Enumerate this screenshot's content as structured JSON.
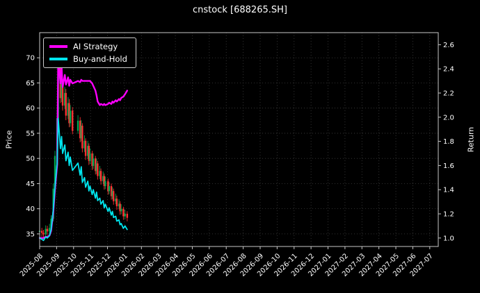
{
  "colors": {
    "background": "#000000",
    "text": "#ffffff",
    "grid": "#3f3f3f",
    "spine": "#c8c8c8",
    "up_candle": "#00a650",
    "down_candle": "#fe3032"
  },
  "chart_data": {
    "type": "line",
    "candlestick_overlay": true,
    "title": "cnstock [688265.SH]",
    "xlabel": "",
    "ylabel_left": "Price",
    "ylabel_right": "Return",
    "grid": true,
    "legend_position": "upper-left",
    "x_tick_labels": [
      "2025-08",
      "2025-09",
      "2025-10",
      "2025-11",
      "2025-12",
      "2026-01",
      "2026-02",
      "2026-03",
      "2026-04",
      "2026-05",
      "2026-06",
      "2026-07",
      "2026-08",
      "2026-09",
      "2026-10",
      "2026-11",
      "2026-12",
      "2027-01",
      "2027-02",
      "2027-03",
      "2027-04",
      "2027-05",
      "2027-06",
      "2027-07"
    ],
    "y_left_ticks": [
      35,
      40,
      45,
      50,
      55,
      60,
      65,
      70
    ],
    "y_right_ticks": [
      1.0,
      1.2,
      1.4,
      1.6,
      1.8,
      2.0,
      2.2,
      2.4,
      2.6
    ],
    "y_left_range": [
      32.5,
      75
    ],
    "y_right_range": [
      0.93,
      2.7
    ],
    "dates": [
      "2025-08-01",
      "2025-08-05",
      "2025-08-08",
      "2025-08-12",
      "2025-08-15",
      "2025-08-19",
      "2025-08-22",
      "2025-08-26",
      "2025-08-29",
      "2025-09-02",
      "2025-09-04",
      "2025-09-08",
      "2025-09-10",
      "2025-09-12",
      "2025-09-16",
      "2025-09-18",
      "2025-09-22",
      "2025-09-24",
      "2025-09-26",
      "2025-09-30",
      "2025-10-09",
      "2025-10-13",
      "2025-10-15",
      "2025-10-17",
      "2025-10-21",
      "2025-10-23",
      "2025-10-27",
      "2025-10-29",
      "2025-10-31",
      "2025-11-04",
      "2025-11-06",
      "2025-11-10",
      "2025-11-12",
      "2025-11-14",
      "2025-11-18",
      "2025-11-20",
      "2025-11-24",
      "2025-11-26",
      "2025-11-28",
      "2025-12-02",
      "2025-12-04",
      "2025-12-08",
      "2025-12-10",
      "2025-12-12",
      "2025-12-16",
      "2025-12-18",
      "2025-12-22",
      "2025-12-24",
      "2025-12-26",
      "2025-12-30",
      "2026-01-02",
      "2026-01-06"
    ],
    "candles_ohlc": [
      [
        35.4,
        36.4,
        34.6,
        35.6
      ],
      [
        35.6,
        36.2,
        34.4,
        35.2
      ],
      [
        35.2,
        35.8,
        34.1,
        34.9
      ],
      [
        34.9,
        36.7,
        34.3,
        36.0
      ],
      [
        36.0,
        36.6,
        34.8,
        35.5
      ],
      [
        35.5,
        37.0,
        34.9,
        36.2
      ],
      [
        36.2,
        38.7,
        35.7,
        38.0
      ],
      [
        38.0,
        45.0,
        37.5,
        44.0
      ],
      [
        44.0,
        51.5,
        43.5,
        50.5
      ],
      [
        50.5,
        59.5,
        50.0,
        58.0
      ],
      [
        58.0,
        72.5,
        57.5,
        70.9
      ],
      [
        70.9,
        71.5,
        61.0,
        62.0
      ],
      [
        62.0,
        66.8,
        61.2,
        65.5
      ],
      [
        65.5,
        66.0,
        59.5,
        60.5
      ],
      [
        60.5,
        64.2,
        59.8,
        63.0
      ],
      [
        63.0,
        63.8,
        57.6,
        58.5
      ],
      [
        58.5,
        62.2,
        57.8,
        61.0
      ],
      [
        61.0,
        61.8,
        56.2,
        57.0
      ],
      [
        57.0,
        60.6,
        56.3,
        59.5
      ],
      [
        59.5,
        60.2,
        54.8,
        55.5
      ],
      [
        55.5,
        58.6,
        54.9,
        57.5
      ],
      [
        57.5,
        58.2,
        53.2,
        54.0
      ],
      [
        54.0,
        57.6,
        53.4,
        56.5
      ],
      [
        56.5,
        57.0,
        51.2,
        52.0
      ],
      [
        52.0,
        54.6,
        51.3,
        53.5
      ],
      [
        53.5,
        54.0,
        49.7,
        50.5
      ],
      [
        50.5,
        53.5,
        49.9,
        52.5
      ],
      [
        52.5,
        53.0,
        48.7,
        49.5
      ],
      [
        49.5,
        52.0,
        48.9,
        51.0
      ],
      [
        51.0,
        51.5,
        47.7,
        48.5
      ],
      [
        48.5,
        51.0,
        47.9,
        50.0
      ],
      [
        50.0,
        50.5,
        46.8,
        47.5
      ],
      [
        47.5,
        50.0,
        46.9,
        49.0
      ],
      [
        49.0,
        49.5,
        45.8,
        46.5
      ],
      [
        46.5,
        48.5,
        45.9,
        47.5
      ],
      [
        47.5,
        48.0,
        44.8,
        45.5
      ],
      [
        45.5,
        47.4,
        44.9,
        46.5
      ],
      [
        46.5,
        47.0,
        43.8,
        44.5
      ],
      [
        44.5,
        46.4,
        43.9,
        45.5
      ],
      [
        45.5,
        46.0,
        42.8,
        43.5
      ],
      [
        43.5,
        45.3,
        42.9,
        44.5
      ],
      [
        44.5,
        45.0,
        41.8,
        42.5
      ],
      [
        42.5,
        44.3,
        41.9,
        43.5
      ],
      [
        43.5,
        44.0,
        40.8,
        41.5
      ],
      [
        41.5,
        43.0,
        40.9,
        42.0
      ],
      [
        42.0,
        42.6,
        39.8,
        40.5
      ],
      [
        40.5,
        41.9,
        39.9,
        41.0
      ],
      [
        41.0,
        41.5,
        38.8,
        39.5
      ],
      [
        39.5,
        40.9,
        38.9,
        40.0
      ],
      [
        40.0,
        40.4,
        37.8,
        38.5
      ],
      [
        38.5,
        39.8,
        37.9,
        39.0
      ],
      [
        39.0,
        39.5,
        37.5,
        38.2
      ]
    ],
    "series": [
      {
        "name": "AI Strategy",
        "axis": "right",
        "color": "#ff00ff",
        "values": [
          1.0,
          1.0,
          1.0,
          1.01,
          1.01,
          1.02,
          1.06,
          1.22,
          1.4,
          1.61,
          2.5,
          2.28,
          2.42,
          2.25,
          2.35,
          2.27,
          2.33,
          2.26,
          2.31,
          2.28,
          2.3,
          2.29,
          2.31,
          2.3,
          2.3,
          2.3,
          2.3,
          2.3,
          2.3,
          2.28,
          2.26,
          2.22,
          2.18,
          2.13,
          2.1,
          2.11,
          2.1,
          2.11,
          2.1,
          2.11,
          2.12,
          2.11,
          2.13,
          2.12,
          2.14,
          2.13,
          2.15,
          2.14,
          2.16,
          2.17,
          2.19,
          2.22
        ]
      },
      {
        "name": "Buy-and-Hold",
        "axis": "right",
        "color": "#00e5ee",
        "values": [
          1.0,
          0.99,
          0.98,
          1.01,
          1.0,
          1.02,
          1.07,
          1.24,
          1.42,
          1.63,
          1.99,
          1.74,
          1.84,
          1.7,
          1.77,
          1.64,
          1.71,
          1.6,
          1.67,
          1.56,
          1.62,
          1.52,
          1.59,
          1.46,
          1.5,
          1.42,
          1.47,
          1.39,
          1.43,
          1.36,
          1.4,
          1.33,
          1.38,
          1.31,
          1.33,
          1.28,
          1.31,
          1.25,
          1.28,
          1.22,
          1.25,
          1.19,
          1.22,
          1.17,
          1.18,
          1.14,
          1.15,
          1.11,
          1.12,
          1.08,
          1.1,
          1.07
        ]
      }
    ]
  }
}
